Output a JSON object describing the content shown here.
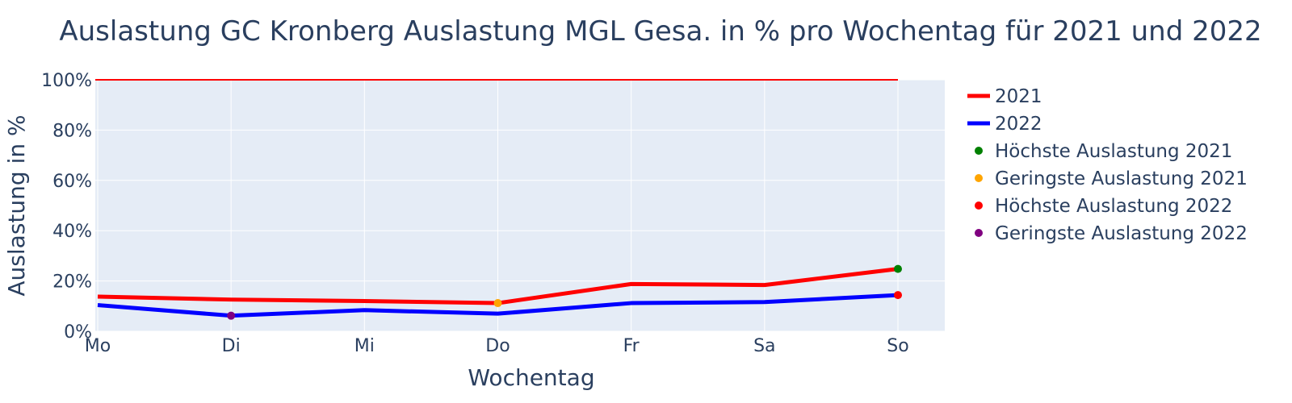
{
  "chart_data": {
    "type": "line",
    "title": "Auslastung GC Kronberg Auslastung MGL Gesa. in % pro Wochentag für 2021 und 2022",
    "xlabel": "Wochentag",
    "ylabel": "Auslastung in %",
    "categories": [
      "Mo",
      "Di",
      "Mi",
      "Do",
      "Fr",
      "Sa",
      "So"
    ],
    "ylim": [
      0,
      100
    ],
    "yticks": [
      0,
      20,
      40,
      60,
      80,
      100
    ],
    "ytick_labels": [
      "0%",
      "20%",
      "40%",
      "60%",
      "80%",
      "100%"
    ],
    "grid": true,
    "legend": "right",
    "series": [
      {
        "name": "2021",
        "color": "#ff0000",
        "values": [
          13.8,
          12.6,
          12.0,
          11.2,
          18.8,
          18.4,
          24.8
        ]
      },
      {
        "name": "2022",
        "color": "#0000ff",
        "values": [
          10.4,
          6.2,
          8.4,
          7.0,
          11.2,
          11.6,
          14.4
        ]
      }
    ],
    "reference_line": {
      "value": 100,
      "color": "#ff0000"
    },
    "markers": [
      {
        "name": "Höchste Auslastung 2021",
        "color": "#008000",
        "category": "So",
        "value": 24.8
      },
      {
        "name": "Geringste Auslastung 2021",
        "color": "#ffa500",
        "category": "Do",
        "value": 11.2
      },
      {
        "name": "Höchste Auslastung 2022",
        "color": "#ff0000",
        "category": "So",
        "value": 14.4
      },
      {
        "name": "Geringste Auslastung 2022",
        "color": "#800080",
        "category": "Di",
        "value": 6.2
      }
    ]
  }
}
